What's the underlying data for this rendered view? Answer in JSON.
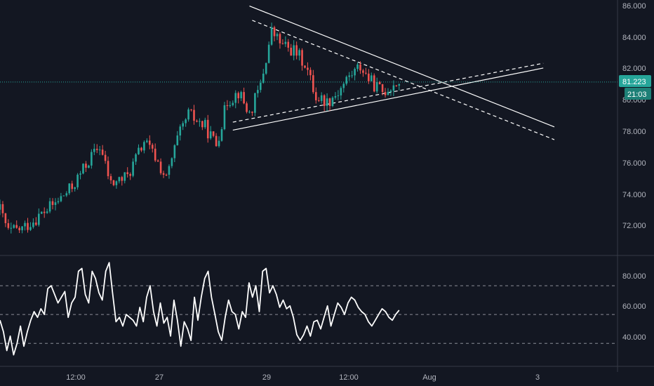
{
  "colors": {
    "background": "#131722",
    "up": "#26a69a",
    "down": "#ef5350",
    "last_price_line": "#26a69a",
    "trendline": "#ffffff",
    "axis_text": "#b2b5be",
    "rsi_line": "#ffffff"
  },
  "price_axis": {
    "ticks": [
      "86.000",
      "84.000",
      "82.000",
      "80.000",
      "78.000",
      "76.000",
      "74.000",
      "72.000"
    ],
    "last_price": "81.223",
    "countdown": "21:03"
  },
  "rsi_axis": {
    "ticks": [
      "80.000",
      "60.000",
      "40.000"
    ]
  },
  "time_axis": {
    "labels": [
      "12:00",
      "27",
      "29",
      "12:00",
      "Aug",
      "3"
    ]
  },
  "chart_data": [
    {
      "type": "candlestick",
      "panel": "price",
      "ylim": [
        70.5,
        86.2
      ],
      "grid": false,
      "last_price": 81.223,
      "anchors": [
        {
          "t": 0,
          "v": 73.2
        },
        {
          "t": 3,
          "v": 71.8
        },
        {
          "t": 8,
          "v": 72.0
        },
        {
          "t": 14,
          "v": 72.8
        },
        {
          "t": 20,
          "v": 73.6
        },
        {
          "t": 26,
          "v": 74.6
        },
        {
          "t": 32,
          "v": 76.3
        },
        {
          "t": 36,
          "v": 77.2
        },
        {
          "t": 40,
          "v": 74.8
        },
        {
          "t": 46,
          "v": 75.3
        },
        {
          "t": 52,
          "v": 77.5
        },
        {
          "t": 56,
          "v": 76.5
        },
        {
          "t": 60,
          "v": 75.1
        },
        {
          "t": 64,
          "v": 77.6
        },
        {
          "t": 68,
          "v": 79.2
        },
        {
          "t": 74,
          "v": 78.4
        },
        {
          "t": 78,
          "v": 77.3
        },
        {
          "t": 82,
          "v": 80.0
        },
        {
          "t": 86,
          "v": 80.6
        },
        {
          "t": 90,
          "v": 79.2
        },
        {
          "t": 94,
          "v": 81.0
        },
        {
          "t": 98,
          "v": 84.4
        },
        {
          "t": 102,
          "v": 83.5
        },
        {
          "t": 106,
          "v": 83.2
        },
        {
          "t": 110,
          "v": 82.4
        },
        {
          "t": 114,
          "v": 80.3
        },
        {
          "t": 118,
          "v": 80.0
        },
        {
          "t": 122,
          "v": 80.6
        },
        {
          "t": 126,
          "v": 81.6
        },
        {
          "t": 130,
          "v": 82.2
        },
        {
          "t": 134,
          "v": 81.2
        },
        {
          "t": 138,
          "v": 80.6
        },
        {
          "t": 142,
          "v": 81.1
        },
        {
          "t": 144,
          "v": 81.223
        }
      ],
      "trendlines": [
        {
          "style": "solid",
          "from": {
            "t": 90,
            "v": 86.0
          },
          "to": {
            "t": 200,
            "v": 78.4
          }
        },
        {
          "style": "solid",
          "from": {
            "t": 84,
            "v": 78.2
          },
          "to": {
            "t": 196,
            "v": 82.1
          }
        },
        {
          "style": "dashed",
          "from": {
            "t": 91,
            "v": 85.1
          },
          "to": {
            "t": 200,
            "v": 77.6
          }
        },
        {
          "style": "dashed",
          "from": {
            "t": 84,
            "v": 78.7
          },
          "to": {
            "t": 196,
            "v": 82.4
          }
        }
      ]
    },
    {
      "type": "line",
      "panel": "rsi",
      "ylim": [
        15,
        90
      ],
      "levels": [
        70,
        50,
        30
      ],
      "x_range": [
        0,
        144
      ],
      "values": [
        46,
        38,
        25,
        35,
        22,
        30,
        42,
        28,
        38,
        46,
        52,
        48,
        54,
        50,
        68,
        70,
        64,
        58,
        62,
        66,
        48,
        58,
        62,
        80,
        82,
        64,
        58,
        80,
        75,
        65,
        60,
        80,
        86,
        65,
        45,
        48,
        42,
        50,
        48,
        46,
        42,
        55,
        45,
        62,
        70,
        52,
        42,
        58,
        44,
        48,
        35,
        60,
        46,
        28,
        45,
        40,
        32,
        62,
        46,
        62,
        75,
        80,
        62,
        50,
        38,
        32,
        48,
        60,
        52,
        50,
        40,
        52,
        48,
        72,
        62,
        70,
        52,
        80,
        82,
        65,
        70,
        64,
        55,
        60,
        54,
        56,
        48,
        36,
        32,
        36,
        42,
        35,
        45,
        46,
        40,
        48,
        56,
        42,
        50,
        58,
        55,
        50,
        58,
        62,
        60,
        55,
        52,
        50,
        45,
        42,
        46,
        50,
        54,
        52,
        48,
        46,
        50,
        53
      ]
    }
  ]
}
